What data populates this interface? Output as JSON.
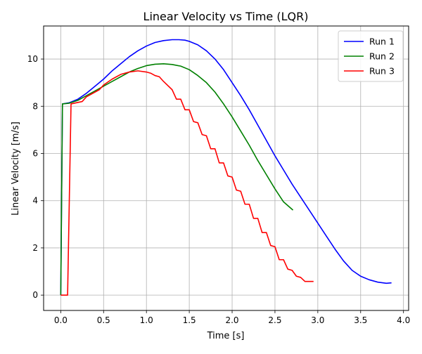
{
  "chart_data": {
    "type": "line",
    "title": "Linear Velocity vs Time (LQR)",
    "xlabel": "Time [s]",
    "ylabel": "Linear Velocity [m/s]",
    "xlim": [
      -0.2,
      4.06
    ],
    "ylim": [
      -0.65,
      11.4
    ],
    "xticks": [
      0.0,
      0.5,
      1.0,
      1.5,
      2.0,
      2.5,
      3.0,
      3.5,
      4.0
    ],
    "xtick_labels": [
      "0.0",
      "0.5",
      "1.0",
      "1.5",
      "2.0",
      "2.5",
      "3.0",
      "3.5",
      "4.0"
    ],
    "yticks": [
      0,
      2,
      4,
      6,
      8,
      10
    ],
    "ytick_labels": [
      "0",
      "2",
      "4",
      "6",
      "8",
      "10"
    ],
    "grid": true,
    "legend_position": "top-right",
    "series": [
      {
        "name": "Run 1",
        "color": "#0000ff",
        "x": [
          0.0,
          0.02,
          0.1,
          0.2,
          0.3,
          0.4,
          0.5,
          0.6,
          0.7,
          0.8,
          0.9,
          1.0,
          1.1,
          1.2,
          1.3,
          1.38,
          1.45,
          1.5,
          1.6,
          1.7,
          1.8,
          1.9,
          2.0,
          2.1,
          2.2,
          2.3,
          2.4,
          2.5,
          2.6,
          2.7,
          2.8,
          2.9,
          3.0,
          3.1,
          3.2,
          3.3,
          3.4,
          3.5,
          3.6,
          3.7,
          3.8,
          3.86
        ],
        "y": [
          0.0,
          8.1,
          8.15,
          8.3,
          8.55,
          8.85,
          9.15,
          9.5,
          9.8,
          10.1,
          10.35,
          10.55,
          10.7,
          10.78,
          10.82,
          10.82,
          10.8,
          10.75,
          10.6,
          10.35,
          10.0,
          9.55,
          9.0,
          8.45,
          7.85,
          7.2,
          6.55,
          5.9,
          5.3,
          4.7,
          4.15,
          3.6,
          3.05,
          2.5,
          1.95,
          1.45,
          1.05,
          0.8,
          0.65,
          0.55,
          0.5,
          0.52
        ]
      },
      {
        "name": "Run 2",
        "color": "#008000",
        "x": [
          0.0,
          0.02,
          0.1,
          0.2,
          0.3,
          0.4,
          0.5,
          0.6,
          0.7,
          0.8,
          0.9,
          1.0,
          1.1,
          1.2,
          1.3,
          1.4,
          1.5,
          1.6,
          1.7,
          1.8,
          1.9,
          2.0,
          2.1,
          2.2,
          2.3,
          2.4,
          2.5,
          2.6,
          2.71
        ],
        "y": [
          0.0,
          8.1,
          8.13,
          8.25,
          8.45,
          8.65,
          8.85,
          9.05,
          9.25,
          9.45,
          9.6,
          9.72,
          9.78,
          9.8,
          9.77,
          9.7,
          9.55,
          9.3,
          9.0,
          8.6,
          8.1,
          7.55,
          6.95,
          6.35,
          5.7,
          5.1,
          4.5,
          3.95,
          3.6
        ]
      },
      {
        "name": "Run 3",
        "color": "#ff0000",
        "x": [
          0.0,
          0.08,
          0.12,
          0.25,
          0.3,
          0.45,
          0.5,
          0.6,
          0.7,
          0.8,
          0.9,
          1.0,
          1.05,
          1.1,
          1.15,
          1.2,
          1.3,
          1.35,
          1.4,
          1.45,
          1.5,
          1.55,
          1.6,
          1.65,
          1.7,
          1.75,
          1.8,
          1.85,
          1.9,
          1.95,
          2.0,
          2.05,
          2.1,
          2.15,
          2.2,
          2.25,
          2.3,
          2.35,
          2.4,
          2.45,
          2.5,
          2.55,
          2.6,
          2.65,
          2.7,
          2.75,
          2.8,
          2.85,
          2.9,
          2.95
        ],
        "y": [
          0.0,
          0.0,
          8.1,
          8.2,
          8.4,
          8.7,
          8.9,
          9.15,
          9.35,
          9.45,
          9.5,
          9.45,
          9.4,
          9.3,
          9.25,
          9.05,
          8.7,
          8.3,
          8.3,
          7.85,
          7.85,
          7.35,
          7.3,
          6.8,
          6.75,
          6.2,
          6.2,
          5.6,
          5.6,
          5.05,
          5.0,
          4.45,
          4.4,
          3.85,
          3.85,
          3.25,
          3.25,
          2.65,
          2.65,
          2.1,
          2.05,
          1.5,
          1.5,
          1.1,
          1.05,
          0.8,
          0.75,
          0.58,
          0.58,
          0.58
        ]
      }
    ]
  }
}
